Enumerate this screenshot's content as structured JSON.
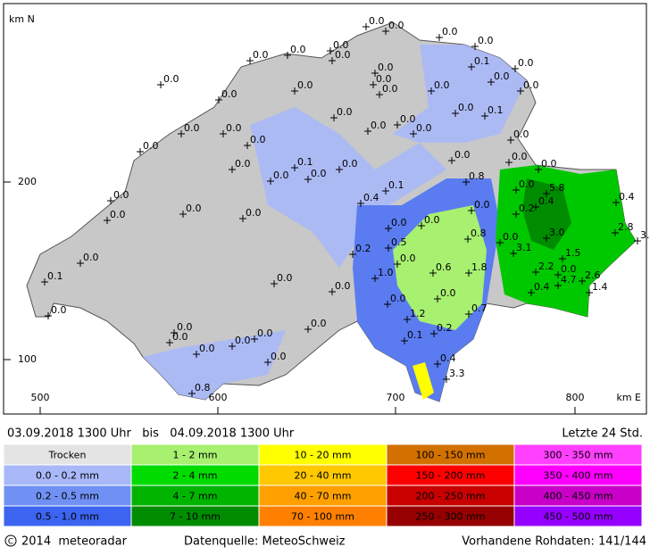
{
  "map": {
    "axis": {
      "y_title": "km N",
      "x_title": "km E",
      "y_labels": [
        "200",
        "100"
      ],
      "x_labels": [
        "500",
        "600",
        "700",
        "800"
      ]
    },
    "stations": [
      "0.0",
      "0.0",
      "0.0",
      "0.0",
      "0.0",
      "0.0",
      "0.0",
      "0.0",
      "0.1",
      "0.0",
      "0.0",
      "0.0",
      "0.0",
      "0.0",
      "0.0",
      "0.0",
      "0.0",
      "0.0",
      "0.0",
      "0.0",
      "0.0",
      "0.1",
      "0.0",
      "0.0",
      "0.0",
      "0.0",
      "0.0",
      "0.0",
      "0.0",
      "0.0",
      "0.1",
      "0.0",
      "0.0",
      "0.0",
      "0.0",
      "0.0",
      "0.0",
      "0.8",
      "0.0",
      "0.0",
      "0.1",
      "5.8",
      "0.0",
      "0.4",
      "0.4",
      "0.4",
      "0.0",
      "0.2",
      "0.0",
      "0.0",
      "0.0",
      "0.0",
      "0.0",
      "3.0",
      "2.8",
      "3.4",
      "0.8",
      "0.0",
      "3.1",
      "0.5",
      "1.5",
      "0.0",
      "0.2",
      "0.0",
      "2.2",
      "0.6",
      "1.8",
      "0.0",
      "4.7",
      "2.6",
      "1.4",
      "1.0",
      "0.4",
      "0.1",
      "0.0",
      "0.0",
      "0.7",
      "0.0",
      "1.2",
      "0.2",
      "0.1",
      "0.0",
      "0.0",
      "0.0",
      "0.0",
      "0.0",
      "0.0",
      "0.0",
      "0.4",
      "3.3",
      "0.8",
      "0.0",
      "0.0"
    ]
  },
  "header": {
    "period": "03.09.2018 1300 Uhr   bis   04.09.2018 1300 Uhr",
    "window": "Letzte 24 Std."
  },
  "legend": {
    "columns": [
      [
        {
          "label": "Trocken",
          "color": "#e4e4e4"
        },
        {
          "label": "0.0 - 0.2 mm",
          "color": "#a8b8f8"
        },
        {
          "label": "0.2 - 0.5 mm",
          "color": "#7090f4"
        },
        {
          "label": "0.5 - 1.0 mm",
          "color": "#3c64f0"
        }
      ],
      [
        {
          "label": "1 - 2 mm",
          "color": "#a8f070"
        },
        {
          "label": "2 - 4 mm",
          "color": "#00dc00"
        },
        {
          "label": "4 - 7 mm",
          "color": "#00b400"
        },
        {
          "label": "7 - 10 mm",
          "color": "#008c00"
        }
      ],
      [
        {
          "label": "10 - 20 mm",
          "color": "#ffff00"
        },
        {
          "label": "20 - 40 mm",
          "color": "#ffc800"
        },
        {
          "label": "40 - 70 mm",
          "color": "#ffa000"
        },
        {
          "label": "70 - 100 mm",
          "color": "#ff8000"
        }
      ],
      [
        {
          "label": "100 - 150 mm",
          "color": "#d27000"
        },
        {
          "label": "150 - 200 mm",
          "color": "#ff0000"
        },
        {
          "label": "200 - 250 mm",
          "color": "#c80000"
        },
        {
          "label": "250 - 300 mm",
          "color": "#960000"
        }
      ],
      [
        {
          "label": "300 - 350 mm",
          "color": "#ff40ff"
        },
        {
          "label": "350 - 400 mm",
          "color": "#ff00ff"
        },
        {
          "label": "400 - 450 mm",
          "color": "#c800c8"
        },
        {
          "label": "450 - 500 mm",
          "color": "#9600ff"
        }
      ]
    ]
  },
  "footer": {
    "copyright": "2014  meteoradar",
    "source": "Datenquelle: MeteoSchweiz",
    "raw": "Vorhandene Rohdaten: 141/144"
  }
}
